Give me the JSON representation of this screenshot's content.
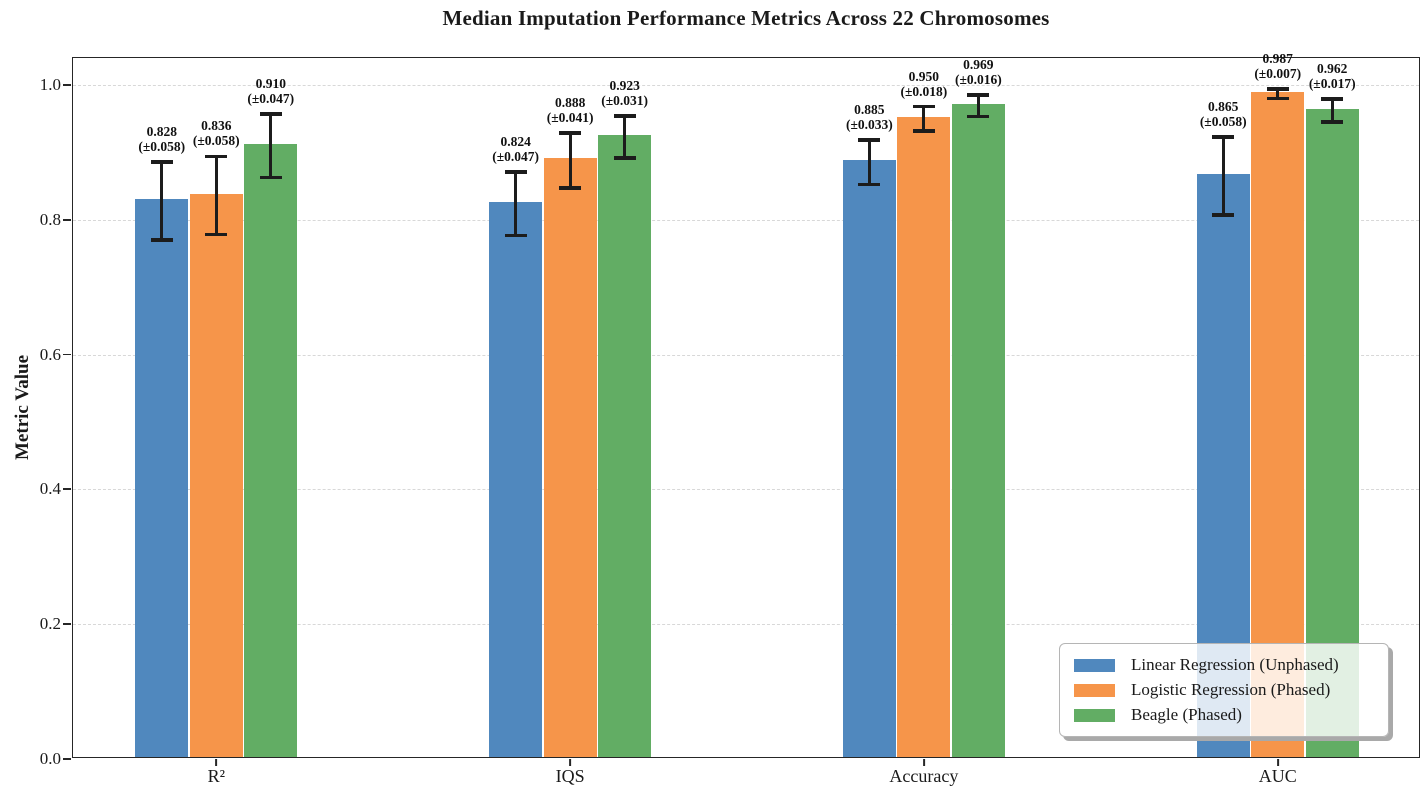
{
  "chart_data": {
    "type": "bar",
    "title": "Median Imputation Performance Metrics Across 22 Chromosomes",
    "xlabel": "",
    "ylabel": "Metric Value",
    "categories": [
      "R²",
      "IQS",
      "Accuracy",
      "AUC"
    ],
    "series": [
      {
        "name": "Linear Regression (Unphased)",
        "color": "#5088BE",
        "values": [
          0.828,
          0.824,
          0.885,
          0.865
        ],
        "errors": [
          0.058,
          0.047,
          0.033,
          0.058
        ]
      },
      {
        "name": "Logistic Regression (Phased)",
        "color": "#F6954A",
        "values": [
          0.836,
          0.888,
          0.95,
          0.987
        ],
        "errors": [
          0.058,
          0.041,
          0.018,
          0.007
        ]
      },
      {
        "name": "Beagle (Phased)",
        "color": "#62AD64",
        "values": [
          0.91,
          0.923,
          0.969,
          0.962
        ],
        "errors": [
          0.047,
          0.031,
          0.016,
          0.017
        ]
      }
    ],
    "ytick_labels": [
      "0.0",
      "0.2",
      "0.4",
      "0.6",
      "0.8",
      "1.0"
    ],
    "ytick_values": [
      0.0,
      0.2,
      0.4,
      0.6,
      0.8,
      1.0
    ],
    "ylim": [
      0,
      1.04
    ],
    "grid": {
      "axis": "y",
      "style": "dashed",
      "color": "#d8d8d8"
    },
    "legend_position": "lower-right",
    "annotation_format": "value (±error)",
    "error_bar_color": "#1c1c1c"
  }
}
